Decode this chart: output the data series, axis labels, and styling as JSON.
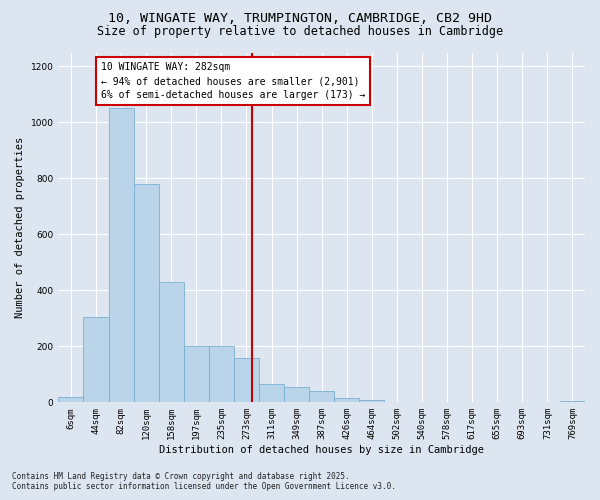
{
  "title1": "10, WINGATE WAY, TRUMPINGTON, CAMBRIDGE, CB2 9HD",
  "title2": "Size of property relative to detached houses in Cambridge",
  "xlabel": "Distribution of detached houses by size in Cambridge",
  "ylabel": "Number of detached properties",
  "bins": [
    "6sqm",
    "44sqm",
    "82sqm",
    "120sqm",
    "158sqm",
    "197sqm",
    "235sqm",
    "273sqm",
    "311sqm",
    "349sqm",
    "387sqm",
    "426sqm",
    "464sqm",
    "502sqm",
    "540sqm",
    "578sqm",
    "617sqm",
    "655sqm",
    "693sqm",
    "731sqm",
    "769sqm"
  ],
  "values": [
    20,
    305,
    1050,
    780,
    430,
    200,
    200,
    160,
    65,
    55,
    40,
    15,
    8,
    2,
    0,
    0,
    0,
    0,
    0,
    0,
    3
  ],
  "bar_color": "#bad4ea",
  "bar_edge_color": "#7aafd4",
  "bar_linewidth": 0.6,
  "vline_color": "#cc0000",
  "annotation_text": "10 WINGATE WAY: 282sqm\n← 94% of detached houses are smaller (2,901)\n6% of semi-detached houses are larger (173) →",
  "annotation_box_color": "#cc0000",
  "ylim": [
    0,
    1250
  ],
  "yticks": [
    0,
    200,
    400,
    600,
    800,
    1000,
    1200
  ],
  "fig_bg_color": "#dde6f0",
  "axes_bg_color": "#dde6f0",
  "grid_color": "#ffffff",
  "footer1": "Contains HM Land Registry data © Crown copyright and database right 2025.",
  "footer2": "Contains public sector information licensed under the Open Government Licence v3.0.",
  "title1_fontsize": 9.5,
  "title2_fontsize": 8.5,
  "annotation_fontsize": 7,
  "axis_label_fontsize": 7.5,
  "tick_fontsize": 6.5
}
